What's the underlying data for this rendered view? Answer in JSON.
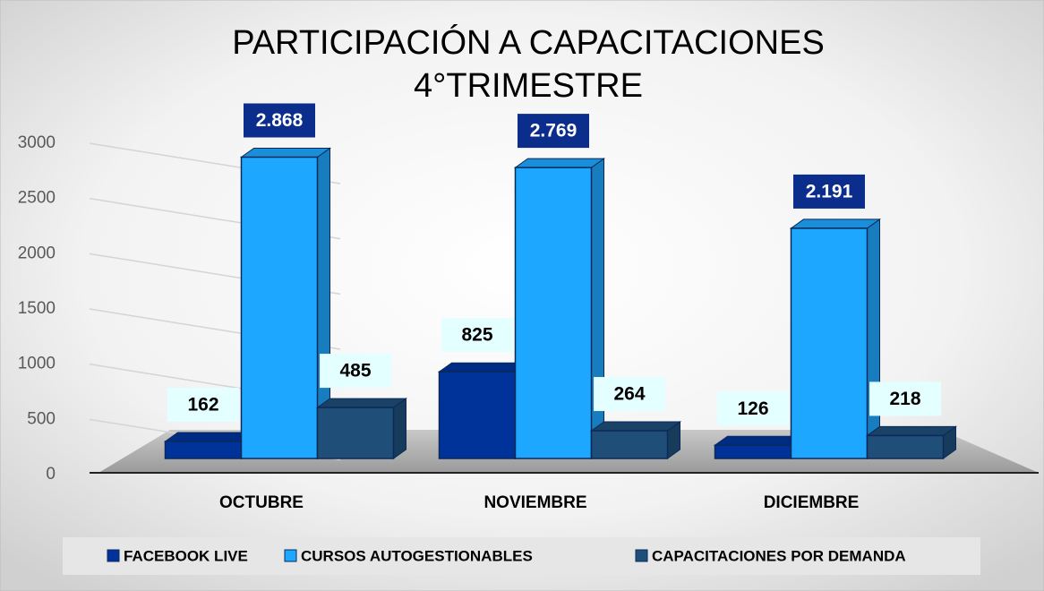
{
  "chart_data": {
    "type": "bar3d",
    "title": [
      "PARTICIPACIÓN A CAPACITACIONES",
      "4°TRIMESTRE"
    ],
    "categories": [
      "OCTUBRE",
      "NOVIEMBRE",
      "DICIEMBRE"
    ],
    "series": [
      {
        "name": "FACEBOOK LIVE",
        "color": "#003399",
        "values": [
          162,
          825,
          126
        ]
      },
      {
        "name": "CURSOS AUTOGESTIONABLES",
        "color": "#1ea7ff",
        "values": [
          2868,
          2769,
          2191
        ],
        "value_labels": [
          "2.868",
          "2.769",
          "2.191"
        ]
      },
      {
        "name": "CAPACITACIONES POR DEMANDA",
        "color": "#1f4e79",
        "values": [
          485,
          264,
          218
        ]
      }
    ],
    "ylim": [
      0,
      3000
    ],
    "yticks": [
      0,
      500,
      1000,
      1500,
      2000,
      2500,
      3000
    ],
    "grid": true,
    "legend": "bottom"
  }
}
